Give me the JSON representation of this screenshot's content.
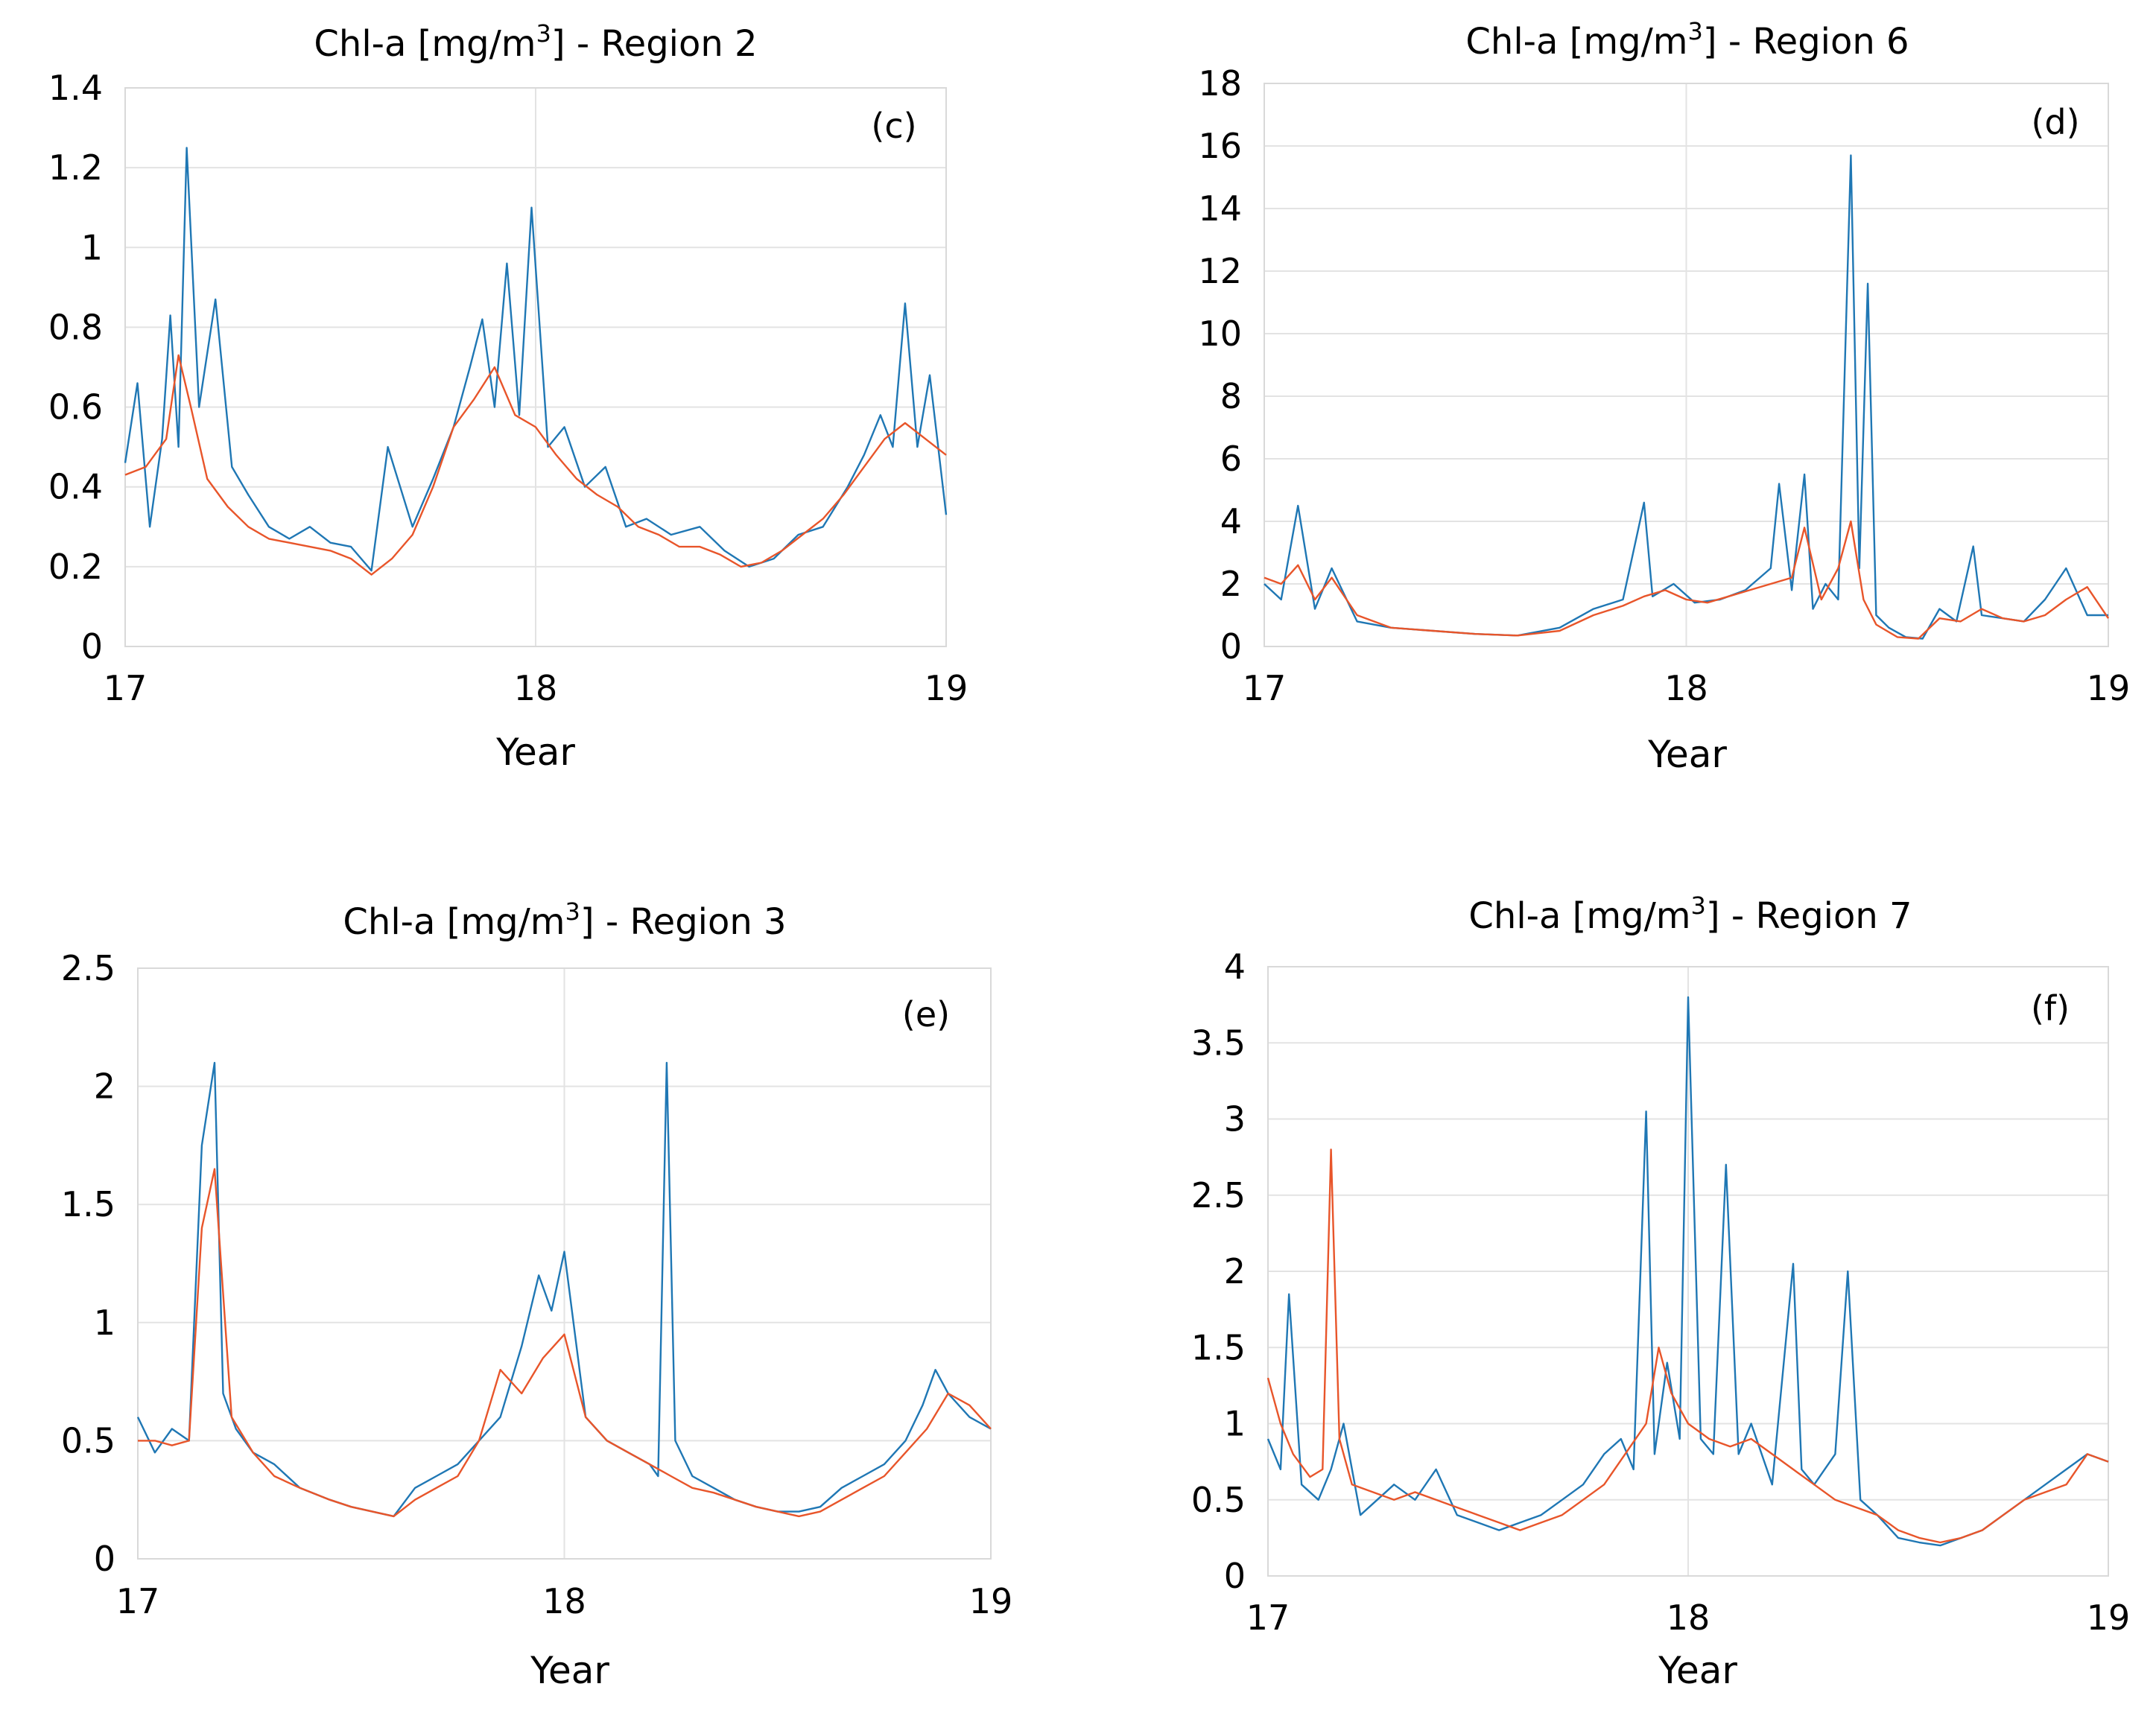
{
  "chart_data": [
    {
      "type": "line",
      "panel_label": "(c)",
      "title_prefix": "Chl-a [mg/m",
      "title_sup": "3",
      "title_suffix": "] - Region 2",
      "xlabel": "Year",
      "xticks": [
        "17",
        "18",
        "19"
      ],
      "yticks": [
        "0",
        "0.2",
        "0.4",
        "0.6",
        "0.8",
        "1",
        "1.2",
        "1.4"
      ],
      "xlim": [
        17,
        19
      ],
      "ylim": [
        0,
        1.4
      ],
      "series": [
        {
          "name": "blue",
          "color": "#1f77b4",
          "x": [
            17.0,
            17.03,
            17.06,
            17.09,
            17.11,
            17.13,
            17.15,
            17.18,
            17.22,
            17.26,
            17.3,
            17.35,
            17.4,
            17.45,
            17.5,
            17.55,
            17.6,
            17.64,
            17.7,
            17.75,
            17.8,
            17.84,
            17.87,
            17.9,
            17.93,
            17.96,
            17.99,
            18.03,
            18.07,
            18.12,
            18.17,
            18.22,
            18.27,
            18.33,
            18.4,
            18.46,
            18.52,
            18.58,
            18.64,
            18.7,
            18.76,
            18.8,
            18.84,
            18.87,
            18.9,
            18.93,
            18.96,
            19.0
          ],
          "y": [
            0.46,
            0.66,
            0.3,
            0.52,
            0.83,
            0.5,
            1.25,
            0.6,
            0.87,
            0.45,
            0.38,
            0.3,
            0.27,
            0.3,
            0.26,
            0.25,
            0.19,
            0.5,
            0.3,
            0.42,
            0.55,
            0.7,
            0.82,
            0.6,
            0.96,
            0.58,
            1.1,
            0.5,
            0.55,
            0.4,
            0.45,
            0.3,
            0.32,
            0.28,
            0.3,
            0.24,
            0.2,
            0.22,
            0.28,
            0.3,
            0.4,
            0.48,
            0.58,
            0.5,
            0.86,
            0.5,
            0.68,
            0.33
          ]
        },
        {
          "name": "orange",
          "color": "#e8552a",
          "x": [
            17.0,
            17.05,
            17.1,
            17.13,
            17.16,
            17.2,
            17.25,
            17.3,
            17.35,
            17.4,
            17.45,
            17.5,
            17.55,
            17.6,
            17.65,
            17.7,
            17.75,
            17.8,
            17.85,
            17.9,
            17.95,
            18.0,
            18.05,
            18.1,
            18.15,
            18.2,
            18.25,
            18.3,
            18.35,
            18.4,
            18.45,
            18.5,
            18.55,
            18.6,
            18.65,
            18.7,
            18.75,
            18.8,
            18.85,
            18.9,
            18.95,
            19.0
          ],
          "y": [
            0.43,
            0.45,
            0.52,
            0.73,
            0.6,
            0.42,
            0.35,
            0.3,
            0.27,
            0.26,
            0.25,
            0.24,
            0.22,
            0.18,
            0.22,
            0.28,
            0.4,
            0.55,
            0.62,
            0.7,
            0.58,
            0.55,
            0.48,
            0.42,
            0.38,
            0.35,
            0.3,
            0.28,
            0.25,
            0.25,
            0.23,
            0.2,
            0.21,
            0.24,
            0.28,
            0.32,
            0.38,
            0.45,
            0.52,
            0.56,
            0.52,
            0.48
          ]
        }
      ]
    },
    {
      "type": "line",
      "panel_label": "(d)",
      "title_prefix": "Chl-a [mg/m",
      "title_sup": "3",
      "title_suffix": "] - Region 6",
      "xlabel": "Year",
      "xticks": [
        "17",
        "18",
        "19"
      ],
      "yticks": [
        "0",
        "2",
        "4",
        "6",
        "8",
        "10",
        "12",
        "14",
        "16",
        "18"
      ],
      "xlim": [
        17,
        19
      ],
      "ylim": [
        0,
        18
      ],
      "series": [
        {
          "name": "blue",
          "color": "#1f77b4",
          "x": [
            17.0,
            17.04,
            17.08,
            17.12,
            17.16,
            17.22,
            17.3,
            17.4,
            17.5,
            17.6,
            17.7,
            17.78,
            17.85,
            17.9,
            17.92,
            17.97,
            18.02,
            18.08,
            18.14,
            18.2,
            18.22,
            18.25,
            18.28,
            18.3,
            18.33,
            18.36,
            18.39,
            18.41,
            18.43,
            18.45,
            18.48,
            18.52,
            18.56,
            18.6,
            18.64,
            18.68,
            18.7,
            18.75,
            18.8,
            18.85,
            18.9,
            18.95,
            19.0
          ],
          "y": [
            2.0,
            1.5,
            4.5,
            1.2,
            2.5,
            0.8,
            0.6,
            0.5,
            0.4,
            0.35,
            0.6,
            1.2,
            1.5,
            4.6,
            1.6,
            2.0,
            1.4,
            1.5,
            1.8,
            2.5,
            5.2,
            1.8,
            5.5,
            1.2,
            2.0,
            1.5,
            15.7,
            2.5,
            11.6,
            1.0,
            0.6,
            0.3,
            0.25,
            1.2,
            0.8,
            3.2,
            1.0,
            0.9,
            0.8,
            1.5,
            2.5,
            1.0,
            1.0
          ]
        },
        {
          "name": "orange",
          "color": "#e8552a",
          "x": [
            17.0,
            17.04,
            17.08,
            17.12,
            17.16,
            17.22,
            17.3,
            17.4,
            17.5,
            17.6,
            17.7,
            17.78,
            17.85,
            17.9,
            17.95,
            18.0,
            18.05,
            18.1,
            18.15,
            18.2,
            18.25,
            18.28,
            18.32,
            18.36,
            18.39,
            18.42,
            18.45,
            18.5,
            18.55,
            18.6,
            18.65,
            18.7,
            18.75,
            18.8,
            18.85,
            18.9,
            18.95,
            19.0
          ],
          "y": [
            2.2,
            2.0,
            2.6,
            1.5,
            2.2,
            1.0,
            0.6,
            0.5,
            0.4,
            0.35,
            0.5,
            1.0,
            1.3,
            1.6,
            1.8,
            1.5,
            1.4,
            1.6,
            1.8,
            2.0,
            2.2,
            3.8,
            1.5,
            2.5,
            4.0,
            1.5,
            0.7,
            0.3,
            0.25,
            0.9,
            0.8,
            1.2,
            0.9,
            0.8,
            1.0,
            1.5,
            1.9,
            0.9
          ]
        }
      ]
    },
    {
      "type": "line",
      "panel_label": "(e)",
      "title_prefix": "Chl-a [mg/m",
      "title_sup": "3",
      "title_suffix": "] - Region 3",
      "xlabel": "Year",
      "xticks": [
        "17",
        "18",
        "19"
      ],
      "yticks": [
        "0",
        "0.5",
        "1",
        "1.5",
        "2",
        "2.5"
      ],
      "xlim": [
        17,
        19
      ],
      "ylim": [
        0,
        2.5
      ],
      "series": [
        {
          "name": "blue",
          "color": "#1f77b4",
          "x": [
            17.0,
            17.04,
            17.08,
            17.12,
            17.15,
            17.18,
            17.2,
            17.23,
            17.27,
            17.32,
            17.38,
            17.45,
            17.5,
            17.55,
            17.6,
            17.65,
            17.7,
            17.75,
            17.8,
            17.85,
            17.9,
            17.94,
            17.97,
            18.0,
            18.05,
            18.1,
            18.15,
            18.2,
            18.22,
            18.24,
            18.26,
            18.3,
            18.35,
            18.4,
            18.45,
            18.5,
            18.55,
            18.6,
            18.65,
            18.7,
            18.75,
            18.8,
            18.84,
            18.87,
            18.9,
            18.95,
            19.0
          ],
          "y": [
            0.6,
            0.45,
            0.55,
            0.5,
            1.75,
            2.1,
            0.7,
            0.55,
            0.45,
            0.4,
            0.3,
            0.25,
            0.22,
            0.2,
            0.18,
            0.3,
            0.35,
            0.4,
            0.5,
            0.6,
            0.9,
            1.2,
            1.05,
            1.3,
            0.6,
            0.5,
            0.45,
            0.4,
            0.35,
            2.1,
            0.5,
            0.35,
            0.3,
            0.25,
            0.22,
            0.2,
            0.2,
            0.22,
            0.3,
            0.35,
            0.4,
            0.5,
            0.65,
            0.8,
            0.7,
            0.6,
            0.55
          ]
        },
        {
          "name": "orange",
          "color": "#e8552a",
          "x": [
            17.0,
            17.04,
            17.08,
            17.12,
            17.15,
            17.18,
            17.22,
            17.27,
            17.32,
            17.38,
            17.45,
            17.5,
            17.55,
            17.6,
            17.65,
            17.7,
            17.75,
            17.8,
            17.85,
            17.9,
            17.95,
            18.0,
            18.05,
            18.1,
            18.15,
            18.2,
            18.25,
            18.3,
            18.35,
            18.4,
            18.45,
            18.5,
            18.55,
            18.6,
            18.65,
            18.7,
            18.75,
            18.8,
            18.85,
            18.9,
            18.95,
            19.0
          ],
          "y": [
            0.5,
            0.5,
            0.48,
            0.5,
            1.4,
            1.65,
            0.6,
            0.45,
            0.35,
            0.3,
            0.25,
            0.22,
            0.2,
            0.18,
            0.25,
            0.3,
            0.35,
            0.5,
            0.8,
            0.7,
            0.85,
            0.95,
            0.6,
            0.5,
            0.45,
            0.4,
            0.35,
            0.3,
            0.28,
            0.25,
            0.22,
            0.2,
            0.18,
            0.2,
            0.25,
            0.3,
            0.35,
            0.45,
            0.55,
            0.7,
            0.65,
            0.55
          ]
        }
      ]
    },
    {
      "type": "line",
      "panel_label": "(f)",
      "title_prefix": "Chl-a [mg/m",
      "title_sup": "3",
      "title_suffix": "] - Region 7",
      "xlabel": "Year",
      "xticks": [
        "17",
        "18",
        "19"
      ],
      "yticks": [
        "0",
        "0.5",
        "1",
        "1.5",
        "2",
        "2.5",
        "3",
        "3.5",
        "4"
      ],
      "xlim": [
        17,
        19
      ],
      "ylim": [
        0,
        4
      ],
      "series": [
        {
          "name": "blue",
          "color": "#1f77b4",
          "x": [
            17.0,
            17.03,
            17.05,
            17.08,
            17.12,
            17.15,
            17.18,
            17.22,
            17.26,
            17.3,
            17.35,
            17.4,
            17.45,
            17.5,
            17.55,
            17.6,
            17.65,
            17.7,
            17.75,
            17.8,
            17.84,
            17.87,
            17.9,
            17.92,
            17.95,
            17.98,
            18.0,
            18.03,
            18.06,
            18.09,
            18.12,
            18.15,
            18.2,
            18.25,
            18.27,
            18.3,
            18.35,
            18.38,
            18.41,
            18.45,
            18.5,
            18.55,
            18.6,
            18.65,
            18.7,
            18.75,
            18.8,
            18.85,
            18.9,
            18.95,
            19.0
          ],
          "y": [
            0.9,
            0.7,
            1.85,
            0.6,
            0.5,
            0.7,
            1.0,
            0.4,
            0.5,
            0.6,
            0.5,
            0.7,
            0.4,
            0.35,
            0.3,
            0.35,
            0.4,
            0.5,
            0.6,
            0.8,
            0.9,
            0.7,
            3.05,
            0.8,
            1.4,
            0.9,
            3.8,
            0.9,
            0.8,
            2.7,
            0.8,
            1.0,
            0.6,
            2.05,
            0.7,
            0.6,
            0.8,
            2.0,
            0.5,
            0.4,
            0.25,
            0.22,
            0.2,
            0.25,
            0.3,
            0.4,
            0.5,
            0.6,
            0.7,
            0.8,
            0.75
          ]
        },
        {
          "name": "orange",
          "color": "#e8552a",
          "x": [
            17.0,
            17.03,
            17.06,
            17.1,
            17.13,
            17.15,
            17.17,
            17.2,
            17.25,
            17.3,
            17.35,
            17.4,
            17.45,
            17.5,
            17.55,
            17.6,
            17.65,
            17.7,
            17.75,
            17.8,
            17.85,
            17.9,
            17.93,
            17.96,
            18.0,
            18.05,
            18.1,
            18.15,
            18.2,
            18.25,
            18.3,
            18.35,
            18.4,
            18.45,
            18.5,
            18.55,
            18.6,
            18.65,
            18.7,
            18.75,
            18.8,
            18.85,
            18.9,
            18.95,
            19.0
          ],
          "y": [
            1.3,
            1.0,
            0.8,
            0.65,
            0.7,
            2.8,
            0.9,
            0.6,
            0.55,
            0.5,
            0.55,
            0.5,
            0.45,
            0.4,
            0.35,
            0.3,
            0.35,
            0.4,
            0.5,
            0.6,
            0.8,
            1.0,
            1.5,
            1.2,
            1.0,
            0.9,
            0.85,
            0.9,
            0.8,
            0.7,
            0.6,
            0.5,
            0.45,
            0.4,
            0.3,
            0.25,
            0.22,
            0.25,
            0.3,
            0.4,
            0.5,
            0.55,
            0.6,
            0.8,
            0.75
          ]
        }
      ]
    }
  ]
}
